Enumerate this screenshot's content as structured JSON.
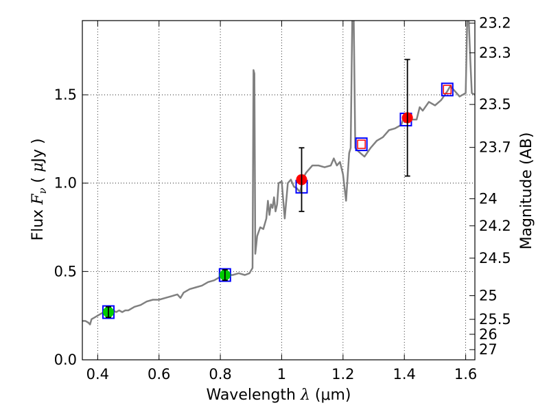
{
  "chart_data": {
    "type": "line",
    "title": "",
    "xlabel": "Wavelength  λ (μm)",
    "xlabel_parts": {
      "prefix": "Wavelength  ",
      "symbol": "λ",
      "unit": " (μm)"
    },
    "ylabel": "Flux  F_ν  ( μJy )",
    "ylabel_parts": {
      "prefix": "Flux  ",
      "symbol": "F",
      "subscript": "ν",
      "open": "  ( ",
      "unit_symbol": "μ",
      "unit": "Jy",
      "close": " )"
    },
    "y2label": "Magnitude (AB)",
    "xlim": [
      0.35,
      1.63
    ],
    "ylim": [
      0.0,
      1.92
    ],
    "grid": true,
    "grid_style": "dotted",
    "x_ticks": [
      {
        "value": 0.4,
        "label": "0.4"
      },
      {
        "value": 0.6,
        "label": "0.6"
      },
      {
        "value": 0.8,
        "label": "0.8"
      },
      {
        "value": 1.0,
        "label": "1"
      },
      {
        "value": 1.2,
        "label": "1.2"
      },
      {
        "value": 1.4,
        "label": "1.4"
      },
      {
        "value": 1.6,
        "label": "1.6"
      }
    ],
    "y_ticks": [
      {
        "value": 0.0,
        "label": "0.0"
      },
      {
        "value": 0.5,
        "label": "0.5"
      },
      {
        "value": 1.0,
        "label": "1.0"
      },
      {
        "value": 1.5,
        "label": "1.5"
      }
    ],
    "mag_ticks": [
      {
        "mag": 23.2,
        "label": "23.2"
      },
      {
        "mag": 23.3,
        "label": "23.3"
      },
      {
        "mag": 23.5,
        "label": "23.5"
      },
      {
        "mag": 23.7,
        "label": "23.7"
      },
      {
        "mag": 24,
        "label": "24"
      },
      {
        "mag": 24.2,
        "label": "24.2"
      },
      {
        "mag": 24.5,
        "label": "24.5"
      },
      {
        "mag": 25,
        "label": "25"
      },
      {
        "mag": 25.5,
        "label": "25.5"
      },
      {
        "mag": 26,
        "label": "26"
      },
      {
        "mag": 27,
        "label": "27"
      }
    ],
    "series": [
      {
        "kind": "spectrum",
        "color": "#808080",
        "x": [
          0.35,
          0.36,
          0.37,
          0.375,
          0.38,
          0.39,
          0.4,
          0.41,
          0.42,
          0.43,
          0.44,
          0.45,
          0.46,
          0.47,
          0.48,
          0.49,
          0.5,
          0.52,
          0.54,
          0.56,
          0.58,
          0.6,
          0.62,
          0.64,
          0.66,
          0.67,
          0.68,
          0.7,
          0.72,
          0.74,
          0.76,
          0.78,
          0.8,
          0.82,
          0.84,
          0.86,
          0.88,
          0.895,
          0.905,
          0.908,
          0.911,
          0.914,
          0.917,
          0.92,
          0.93,
          0.94,
          0.95,
          0.955,
          0.96,
          0.965,
          0.97,
          0.975,
          0.98,
          0.985,
          0.99,
          1.0,
          1.01,
          1.02,
          1.03,
          1.04,
          1.05,
          1.06,
          1.07,
          1.08,
          1.1,
          1.12,
          1.14,
          1.16,
          1.17,
          1.18,
          1.19,
          1.2,
          1.21,
          1.22,
          1.225,
          1.23,
          1.235,
          1.24,
          1.25,
          1.27,
          1.29,
          1.31,
          1.33,
          1.35,
          1.37,
          1.39,
          1.4,
          1.42,
          1.44,
          1.45,
          1.46,
          1.48,
          1.5,
          1.52,
          1.54,
          1.55,
          1.56,
          1.58,
          1.59,
          1.6,
          1.605,
          1.61,
          1.615,
          1.62,
          1.63
        ],
        "y": [
          0.22,
          0.22,
          0.21,
          0.2,
          0.23,
          0.24,
          0.25,
          0.26,
          0.27,
          0.26,
          0.27,
          0.28,
          0.27,
          0.28,
          0.27,
          0.28,
          0.28,
          0.3,
          0.31,
          0.33,
          0.34,
          0.34,
          0.35,
          0.36,
          0.37,
          0.35,
          0.38,
          0.4,
          0.41,
          0.42,
          0.44,
          0.45,
          0.47,
          0.48,
          0.48,
          0.49,
          0.48,
          0.49,
          0.52,
          1.64,
          1.62,
          0.6,
          0.65,
          0.7,
          0.75,
          0.74,
          0.8,
          0.9,
          0.82,
          0.88,
          0.86,
          0.92,
          0.84,
          0.88,
          1.0,
          1.01,
          0.8,
          1.0,
          1.02,
          0.98,
          0.97,
          0.95,
          1.03,
          1.06,
          1.1,
          1.1,
          1.09,
          1.1,
          1.14,
          1.1,
          1.12,
          1.05,
          0.9,
          1.17,
          1.2,
          1.92,
          1.92,
          1.2,
          1.18,
          1.15,
          1.2,
          1.24,
          1.26,
          1.3,
          1.31,
          1.33,
          1.38,
          1.36,
          1.36,
          1.43,
          1.41,
          1.46,
          1.44,
          1.47,
          1.52,
          1.55,
          1.53,
          1.49,
          1.5,
          1.51,
          1.92,
          1.92,
          1.7,
          1.51,
          1.5
        ]
      },
      {
        "kind": "squares",
        "name": "",
        "edge_color": "#0000ff",
        "points": [
          {
            "x": 0.435,
            "y": 0.27
          },
          {
            "x": 0.815,
            "y": 0.48
          },
          {
            "x": 1.065,
            "y": 0.98
          },
          {
            "x": 1.26,
            "y": 1.22
          },
          {
            "x": 1.405,
            "y": 1.36
          },
          {
            "x": 1.54,
            "y": 1.53
          }
        ]
      },
      {
        "kind": "inner-squares",
        "edge_color": "#ff0000",
        "points": [
          {
            "x": 1.26,
            "y": 1.22
          },
          {
            "x": 1.54,
            "y": 1.53
          }
        ]
      },
      {
        "kind": "circles",
        "color": "#00cc00",
        "points": [
          {
            "x": 0.435,
            "y": 0.27,
            "err": 0.03
          },
          {
            "x": 0.815,
            "y": 0.48,
            "err": 0.03
          }
        ]
      },
      {
        "kind": "circles",
        "color": "#ff0000",
        "points": [
          {
            "x": 1.065,
            "y": 1.02,
            "err": 0.18
          },
          {
            "x": 1.41,
            "y": 1.37,
            "err": 0.33
          }
        ]
      }
    ]
  }
}
